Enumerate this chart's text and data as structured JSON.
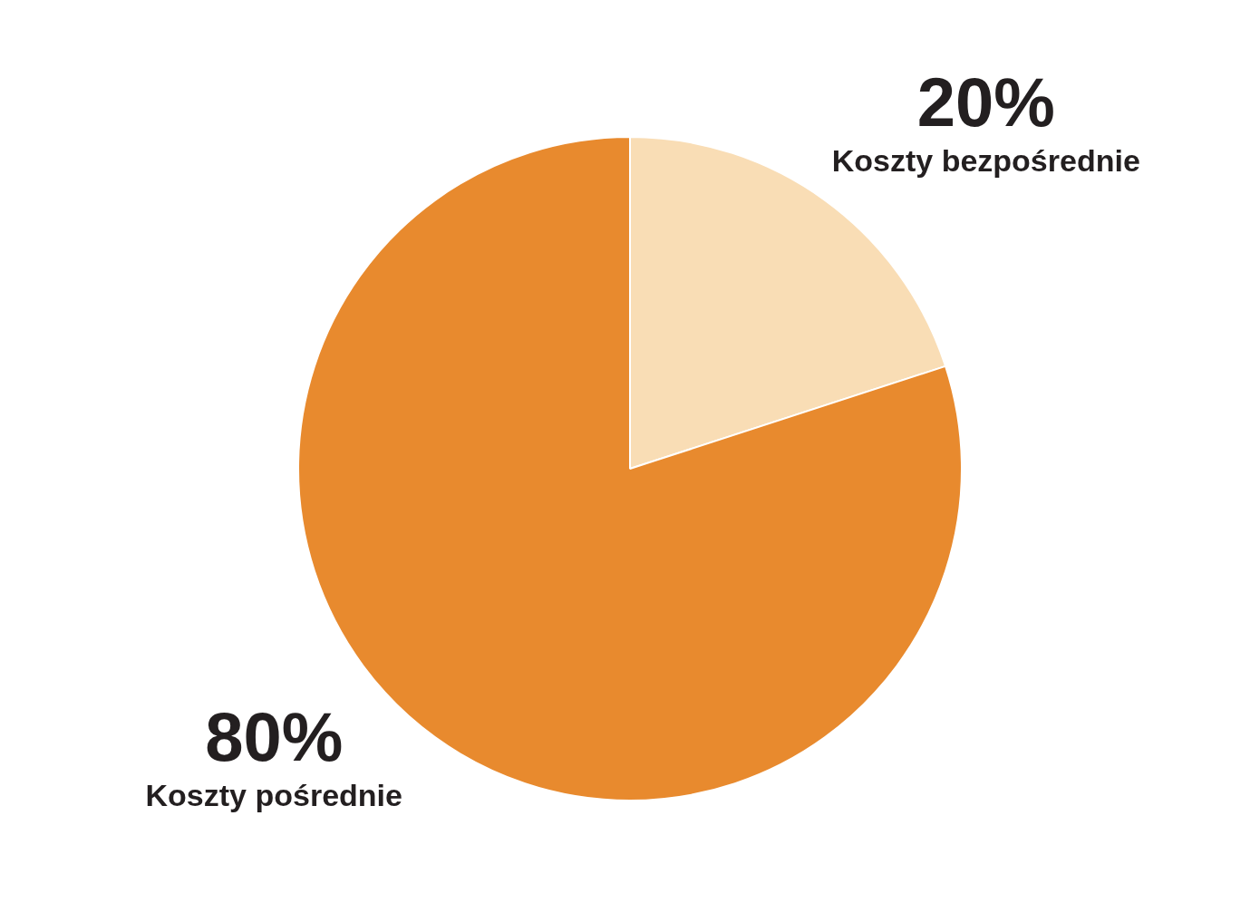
{
  "chart_data": {
    "type": "pie",
    "categories": [
      "Koszty bezpośrednie",
      "Koszty pośrednie"
    ],
    "values": [
      20,
      80
    ],
    "value_labels": [
      "20%",
      "80%"
    ],
    "colors": [
      "#f9ddb5",
      "#e88a2e"
    ],
    "legend": false
  }
}
